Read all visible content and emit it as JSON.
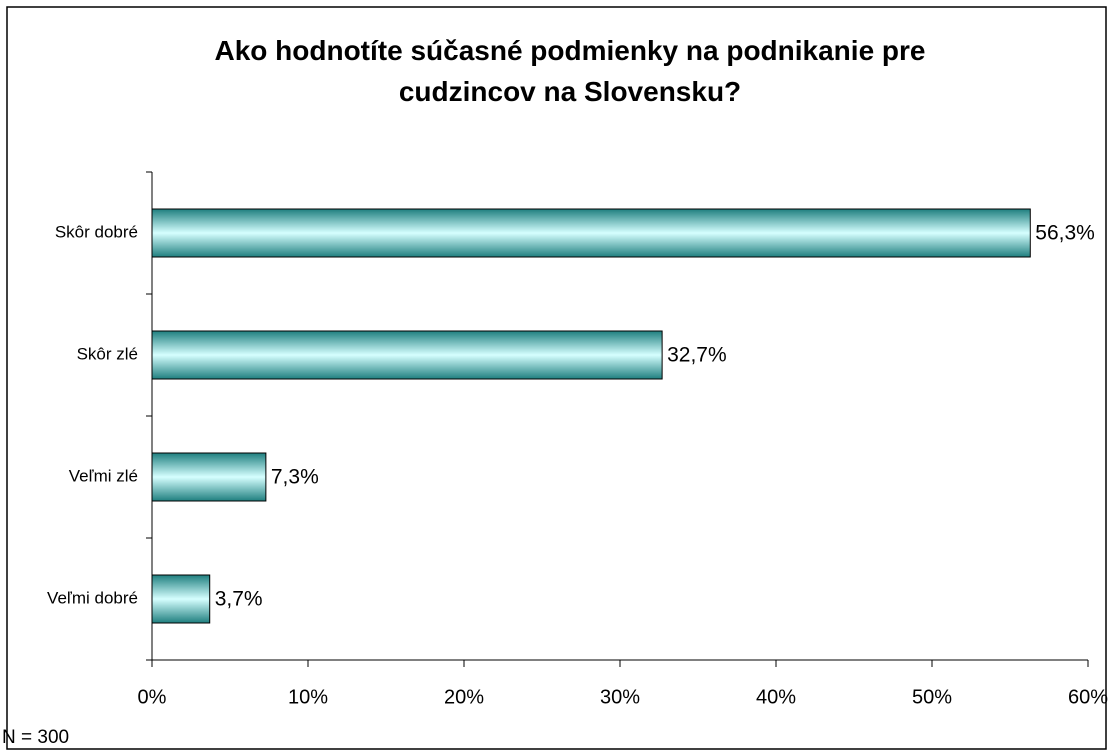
{
  "chart_data": {
    "type": "bar",
    "orientation": "horizontal",
    "title": "Ako hodnotíte súčasné podmienky na podnikanie pre cudzincov na Slovensku?",
    "categories": [
      "Skôr dobré",
      "Skôr zlé",
      "Veľmi zlé",
      "Veľmi dobré"
    ],
    "values": [
      56.3,
      32.7,
      7.3,
      3.7
    ],
    "value_labels": [
      "56,3%",
      "32,7%",
      "7,3%",
      "3,7%"
    ],
    "color": "#33a6a6",
    "xlim": [
      0,
      60
    ],
    "xticks": [
      {
        "value": 0,
        "label": "0%"
      },
      {
        "value": 10,
        "label": "10%"
      },
      {
        "value": 20,
        "label": "20%"
      },
      {
        "value": 30,
        "label": "30%"
      },
      {
        "value": 40,
        "label": "40%"
      },
      {
        "value": 50,
        "label": "50%"
      },
      {
        "value": 60,
        "label": "60%"
      }
    ],
    "grid": false,
    "note": "N = 300"
  }
}
